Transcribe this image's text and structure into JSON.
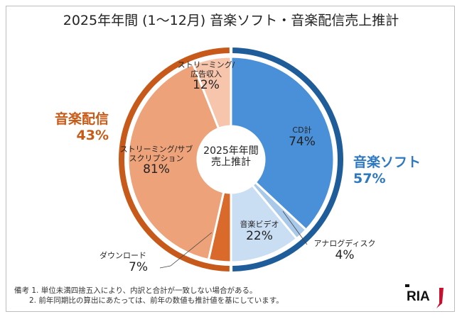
{
  "title": "2025年年間 (1〜12月) 音楽ソフト・音楽配信売上推計",
  "center_label": [
    "2025年年間",
    "売上推計"
  ],
  "notes": [
    "備考 1. 単位未満四捨五入により、内訳と合計が一致しない場合がある。",
    "2. 前年同期比の算出にあたっては、前年の数値も推計値を基にしています。"
  ],
  "logo_text": "RIAJ",
  "chart_data": {
    "type": "pie",
    "title": "2025年年間 (1〜12月) 音楽ソフト・音楽配信売上推計",
    "groups": [
      {
        "name": "音楽ソフト",
        "share": "57%",
        "share_value": 57,
        "color": "#1f5d9a",
        "label_color": "#2e78c2",
        "segments": [
          {
            "name": "CD計",
            "value": 74,
            "label": "74%",
            "color": "#4a90d9"
          },
          {
            "name": "アナログディスク",
            "value": 4,
            "label": "4%",
            "color": "#a9c9ea"
          },
          {
            "name": "音楽ビデオ",
            "value": 22,
            "label": "22%",
            "color": "#c9ddf3"
          }
        ]
      },
      {
        "name": "音楽配信",
        "share": "43%",
        "share_value": 43,
        "color": "#c75a1a",
        "label_color": "#c85a17",
        "segments": [
          {
            "name": "ダウンロード",
            "value": 7,
            "label": "7%",
            "color": "#da6a2c"
          },
          {
            "name": "ストリーミング/サブスクリプション",
            "value": 81,
            "label": "81%",
            "color": "#eea27a"
          },
          {
            "name": "ストリーミング/広告収入",
            "value": 12,
            "label": "12%",
            "color": "#f6c5ab"
          }
        ]
      }
    ]
  }
}
